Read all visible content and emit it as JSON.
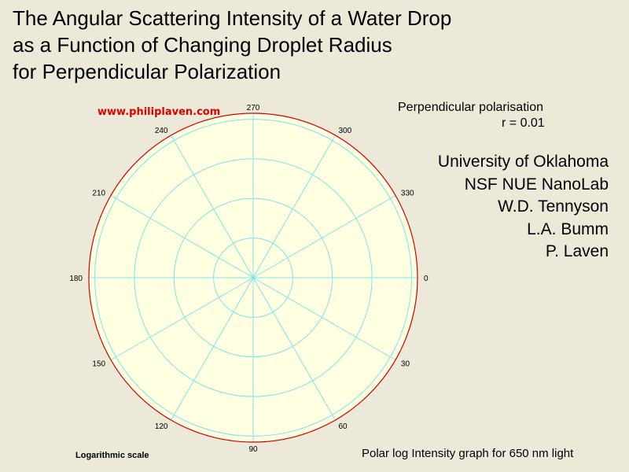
{
  "title_lines": [
    "The Angular Scattering Intensity of a Water Drop",
    "as a Function of Changing Droplet Radius",
    "for Perpendicular Polarization"
  ],
  "watermark": "www.philiplaven.com",
  "polarisation_label": "Perpendicular polarisation",
  "radius_label": "r =  0.01",
  "credits": [
    "University of Oklahoma",
    "NSF NUE NanoLab",
    "W.D. Tennyson",
    "L.A. Bumm",
    "P. Laven"
  ],
  "scale_label": "Logarithmic scale",
  "footer_note": "Polar log Intensity graph for 650 nm light",
  "colors": {
    "background": "#ece9d8",
    "plot_fill": "#ffffe1",
    "grid": "#7fe3ea",
    "rim": "#d40000",
    "watermark": "#e00000"
  },
  "chart_data": {
    "type": "polar",
    "title": "The Angular Scattering Intensity of a Water Drop as a Function of Changing Droplet Radius for Perpendicular Polarization",
    "angle_ticks": [
      "0",
      "30",
      "60",
      "90",
      "120",
      "150",
      "180",
      "210",
      "240",
      "270",
      "300",
      "330"
    ],
    "angle_values_deg": [
      0,
      30,
      60,
      90,
      120,
      150,
      180,
      210,
      240,
      270,
      300,
      330
    ],
    "radial_scale": "log",
    "radial_rings": 4,
    "grid": true,
    "series": []
  }
}
